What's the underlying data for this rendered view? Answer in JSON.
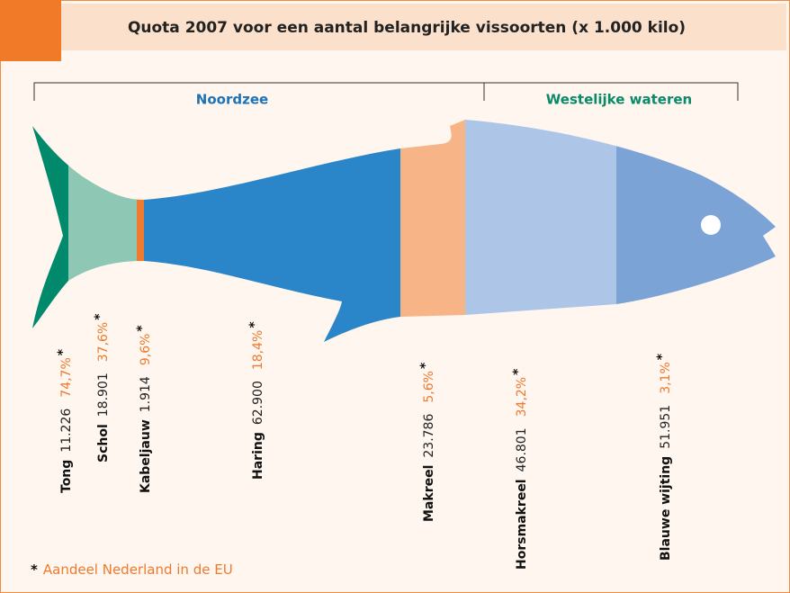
{
  "header": {
    "title": "Quota 2007 voor een aantal belangrijke vissoorten (x 1.000 kilo)"
  },
  "groups": [
    {
      "label": "Noordzee"
    },
    {
      "label": "Westelijke wateren"
    }
  ],
  "items": [
    {
      "name": "Tong",
      "quota": "11.226",
      "share": "74,7%"
    },
    {
      "name": "Schol",
      "quota": "18.901",
      "share": "37,6%"
    },
    {
      "name": "Kabeljauw",
      "quota": "1.914",
      "share": "9,6%"
    },
    {
      "name": "Haring",
      "quota": "62.900",
      "share": "18,4%"
    },
    {
      "name": "Makreel",
      "quota": "23.786",
      "share": "5,6%"
    },
    {
      "name": "Horsmakreel",
      "quota": "46.801",
      "share": "34,2%"
    },
    {
      "name": "Blauwe wijting",
      "quota": "51.951",
      "share": "3,1%"
    }
  ],
  "note": {
    "marker": "*",
    "text": "Aandeel Nederland in de EU"
  }
}
